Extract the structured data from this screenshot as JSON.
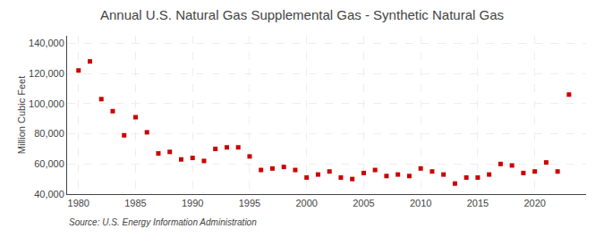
{
  "chart_data": {
    "type": "scatter",
    "title": "Annual U.S. Natural Gas Supplemental Gas - Synthetic Natural Gas",
    "ylabel": "Million Cubic Feet",
    "annotations": [
      "Source: U.S. Energy Information Administration"
    ],
    "x": [
      1980,
      1981,
      1982,
      1983,
      1984,
      1985,
      1986,
      1987,
      1988,
      1989,
      1990,
      1991,
      1992,
      1993,
      1994,
      1995,
      1996,
      1997,
      1998,
      1999,
      2000,
      2001,
      2002,
      2003,
      2004,
      2005,
      2006,
      2007,
      2008,
      2009,
      2010,
      2011,
      2012,
      2013,
      2014,
      2015,
      2016,
      2017,
      2018,
      2019,
      2020,
      2021,
      2022,
      2023
    ],
    "values": [
      122000,
      128000,
      103000,
      95000,
      79000,
      91000,
      81000,
      67000,
      68000,
      63000,
      64000,
      62000,
      70000,
      71000,
      71000,
      65000,
      56000,
      57000,
      58000,
      56000,
      51000,
      53000,
      55000,
      51000,
      50000,
      54000,
      56000,
      52000,
      53000,
      52000,
      57000,
      55000,
      53000,
      47000,
      51000,
      51000,
      53000,
      60000,
      59000,
      54000,
      55000,
      61000,
      55000,
      106000
    ],
    "color": "#cc0000",
    "marker": "square",
    "xlim": [
      1979,
      2024.5
    ],
    "xticks": [
      1980,
      1985,
      1990,
      1995,
      2000,
      2005,
      2010,
      2015,
      2020
    ],
    "ylim": [
      40000,
      145000
    ],
    "yticks": [
      {
        "value": 40000,
        "label": "40,000"
      },
      {
        "value": 60000,
        "label": "60,000"
      },
      {
        "value": 80000,
        "label": "80,000"
      },
      {
        "value": 100000,
        "label": "100,000"
      },
      {
        "value": 120000,
        "label": "120,000"
      },
      {
        "value": 140000,
        "label": "140,000"
      }
    ],
    "grid": true
  }
}
